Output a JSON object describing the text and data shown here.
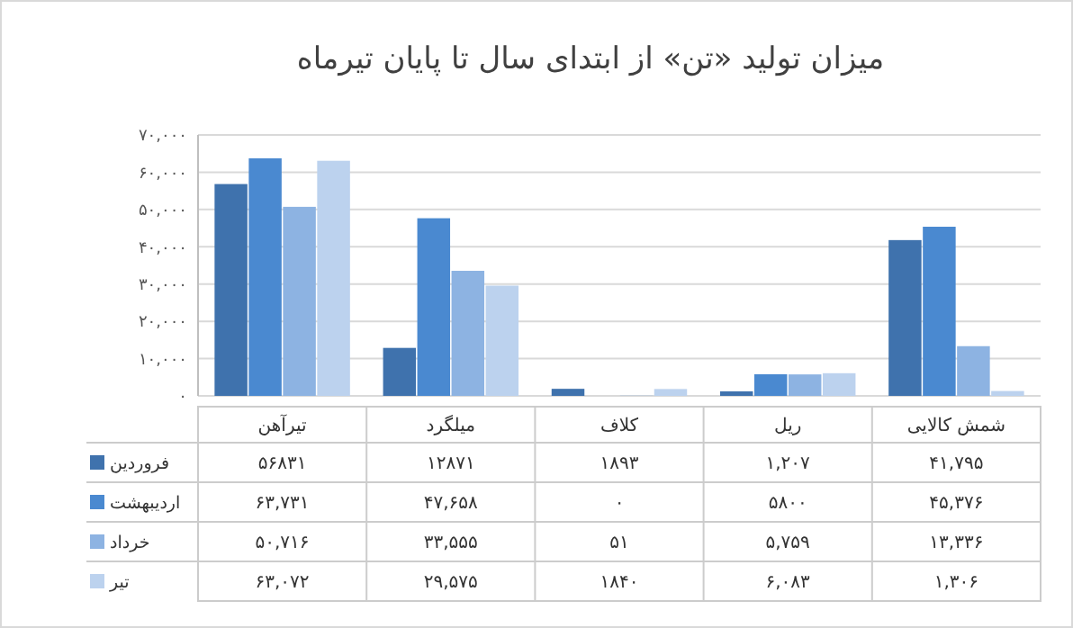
{
  "chart_data": {
    "type": "bar",
    "title": "میزان تولید «تن» از ابتدای سال تا پایان تیرماه",
    "categories": [
      "تیرآهن",
      "میلگرد",
      "کلاف",
      "ریل",
      "شمش کالایی"
    ],
    "series": [
      {
        "name": "فروردین",
        "color": "#3f72ad",
        "values": [
          56831,
          12871,
          1893,
          1207,
          41795
        ],
        "value_labels": [
          "۵۶۸۳۱",
          "۱۲۸۷۱",
          "۱۸۹۳",
          "۱,۲۰۷",
          "۴۱,۷۹۵"
        ]
      },
      {
        "name": "اردیبهشت",
        "color": "#4a89d0",
        "values": [
          63731,
          47658,
          0,
          5800,
          45376
        ],
        "value_labels": [
          "۶۳,۷۳۱",
          "۴۷,۶۵۸",
          "۰",
          "۵۸۰۰",
          "۴۵,۳۷۶"
        ]
      },
      {
        "name": "خرداد",
        "color": "#8db3e2",
        "values": [
          50716,
          33555,
          51,
          5759,
          13336
        ],
        "value_labels": [
          "۵۰,۷۱۶",
          "۳۳,۵۵۵",
          "۵۱",
          "۵,۷۵۹",
          "۱۳,۳۳۶"
        ]
      },
      {
        "name": "تیر",
        "color": "#bcd2ee",
        "values": [
          63072,
          29575,
          1840,
          6083,
          1306
        ],
        "value_labels": [
          "۶۳,۰۷۲",
          "۲۹,۵۷۵",
          "۱۸۴۰",
          "۶,۰۸۳",
          "۱,۳۰۶"
        ]
      }
    ],
    "ylim": [
      0,
      70000
    ],
    "yticks": [
      {
        "value": 0,
        "label": "۰"
      },
      {
        "value": 10000,
        "label": "۱۰,۰۰۰"
      },
      {
        "value": 20000,
        "label": "۲۰,۰۰۰"
      },
      {
        "value": 30000,
        "label": "۳۰,۰۰۰"
      },
      {
        "value": 40000,
        "label": "۴۰,۰۰۰"
      },
      {
        "value": 50000,
        "label": "۵۰,۰۰۰"
      },
      {
        "value": 60000,
        "label": "۶۰,۰۰۰"
      },
      {
        "value": 70000,
        "label": "۷۰,۰۰۰"
      }
    ],
    "grid": "y",
    "legend": "bottom left"
  }
}
